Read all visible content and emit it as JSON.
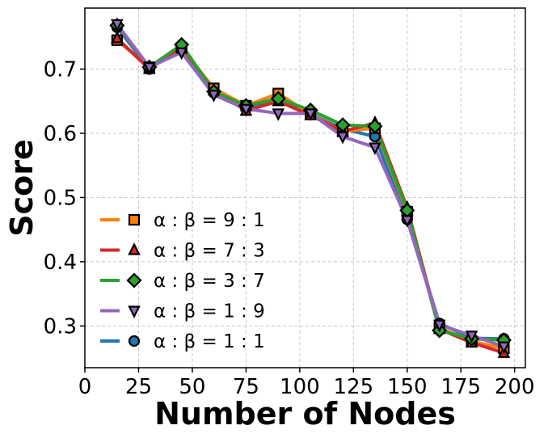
{
  "chart_data": {
    "type": "line",
    "title": "",
    "xlabel": "Number of Nodes",
    "ylabel": "Score",
    "xlim": [
      0,
      205
    ],
    "ylim": [
      0.235,
      0.795
    ],
    "xticks": [
      0,
      25,
      50,
      75,
      100,
      125,
      150,
      175,
      200
    ],
    "yticks": [
      0.3,
      0.4,
      0.5,
      0.6,
      0.7
    ],
    "grid": true,
    "legend_position": "lower-left",
    "x": [
      15,
      30,
      45,
      60,
      75,
      90,
      105,
      120,
      135,
      150,
      165,
      180,
      195
    ],
    "series": [
      {
        "name": "α : β = 9 : 1",
        "color": "#ff7f0e",
        "marker": "square",
        "values": [
          0.745,
          0.703,
          0.733,
          0.67,
          0.643,
          0.662,
          0.63,
          0.603,
          0.608,
          0.478,
          0.297,
          0.276,
          0.265
        ]
      },
      {
        "name": "α : β = 7 : 3",
        "color": "#d62728",
        "marker": "triangle-up",
        "values": [
          0.748,
          0.7,
          0.735,
          0.667,
          0.635,
          0.65,
          0.628,
          0.603,
          0.616,
          0.484,
          0.295,
          0.274,
          0.258
        ]
      },
      {
        "name": "α : β = 3 : 7",
        "color": "#2ca02c",
        "marker": "diamond",
        "values": [
          0.768,
          0.703,
          0.738,
          0.665,
          0.643,
          0.654,
          0.636,
          0.613,
          0.611,
          0.48,
          0.293,
          0.28,
          0.278
        ]
      },
      {
        "name": "α : β = 1 : 9",
        "color": "#9467bd",
        "marker": "triangle-down",
        "values": [
          0.77,
          0.703,
          0.726,
          0.66,
          0.638,
          0.631,
          0.631,
          0.595,
          0.578,
          0.465,
          0.302,
          0.285,
          0.268
        ]
      },
      {
        "name": "α : β = 1 : 1",
        "color": "#1f77b4",
        "marker": "circle",
        "values": [
          0.765,
          0.7,
          0.736,
          0.663,
          0.64,
          0.655,
          0.63,
          0.607,
          0.595,
          0.466,
          0.304,
          0.281,
          0.28
        ]
      }
    ]
  }
}
